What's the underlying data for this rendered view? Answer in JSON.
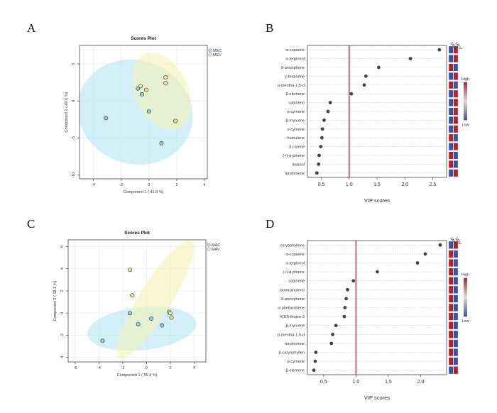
{
  "panels": {
    "a": "A",
    "b": "B",
    "c": "C",
    "d": "D"
  },
  "chart_data": [
    {
      "type": "scatter",
      "id": "A",
      "title": "Scores Plot",
      "xlabel": "Component 1 ( 41.8 %)",
      "ylabel": "Component 2 ( 40.6 %)",
      "xlim": [
        -5,
        4.2
      ],
      "ylim": [
        -10.5,
        7.5
      ],
      "xticks": [
        -4,
        -2,
        0,
        2,
        4
      ],
      "yticks": [
        -10,
        -5,
        0,
        5
      ],
      "grid": true,
      "legend_position": "top-right",
      "colors": {
        "s1": "#aee3f5",
        "s2": "#f5f2ae"
      },
      "series": [
        {
          "name": "MEC",
          "points": [
            [
              -3.1,
              -2.3
            ],
            [
              -0.8,
              1.7
            ],
            [
              -0.5,
              0.9
            ],
            [
              0.0,
              -1.4
            ],
            [
              0.9,
              -5.7
            ]
          ]
        },
        {
          "name": "MEV",
          "points": [
            [
              -0.6,
              2.0
            ],
            [
              -0.2,
              1.5
            ],
            [
              1.2,
              3.2
            ],
            [
              1.2,
              2.4
            ],
            [
              1.9,
              -2.7
            ]
          ]
        }
      ],
      "ellipses": [
        {
          "series": "MEC",
          "cx": -1.0,
          "cy": -1.5,
          "rx": 4.2,
          "ry": 7.0,
          "rot": 20
        },
        {
          "series": "MEV",
          "cx": 0.9,
          "cy": 1.3,
          "rx": 1.9,
          "ry": 5.5,
          "rot": -25
        }
      ]
    },
    {
      "type": "dot",
      "id": "B",
      "xlabel": "VIP scores",
      "xlim": [
        0.25,
        2.75
      ],
      "xticks": [
        0.5,
        1.0,
        1.5,
        2.0,
        2.5
      ],
      "threshold": 1.0,
      "heatmap_columns": [
        "MEC",
        "MEV"
      ],
      "heat_legend": {
        "high": "High",
        "low": "Low"
      },
      "features": [
        "α-copaene",
        "α-terpineol",
        "δ-amorphene",
        "γ-terpinene",
        "p-mentha-1,5-d",
        "β-elemene",
        "sabinene",
        "p-cymene",
        "β-myrcene",
        "o-cymene",
        "humulene",
        "3-carene",
        "(+)-α-pinene",
        "linalool",
        "terpinolene"
      ],
      "values": [
        2.62,
        2.1,
        1.53,
        1.3,
        1.27,
        1.04,
        0.66,
        0.62,
        0.55,
        0.52,
        0.51,
        0.49,
        0.46,
        0.45,
        0.42
      ],
      "heat": [
        [
          "L",
          "H"
        ],
        [
          "L",
          "H"
        ],
        [
          "H",
          "L"
        ],
        [
          "L",
          "H"
        ],
        [
          "H",
          "L"
        ],
        [
          "L",
          "H"
        ],
        [
          "L",
          "H"
        ],
        [
          "L",
          "H"
        ],
        [
          "L",
          "H"
        ],
        [
          "L",
          "H"
        ],
        [
          "H",
          "L"
        ],
        [
          "L",
          "H"
        ],
        [
          "H",
          "L"
        ],
        [
          "H",
          "L"
        ],
        [
          "L",
          "H"
        ]
      ]
    },
    {
      "type": "scatter",
      "id": "C",
      "title": "Scores Plot",
      "xlabel": "Component 1 ( 55.4 %)",
      "ylabel": "Component 2 ( 18.1 %)",
      "xlim": [
        -6.6,
        5.0
      ],
      "ylim": [
        -4.4,
        6.6
      ],
      "xticks": [
        -6,
        -4,
        -2,
        0,
        2,
        4
      ],
      "yticks": [
        -4,
        -2,
        0,
        2,
        4,
        6
      ],
      "grid": true,
      "legend_position": "top-right",
      "colors": {
        "s1": "#aee3f5",
        "s2": "#f5f2ae"
      },
      "series": [
        {
          "name": "MAC",
          "points": [
            [
              -3.7,
              -2.5
            ],
            [
              -1.4,
              0.0
            ],
            [
              -0.7,
              -1.0
            ],
            [
              0.4,
              -0.5
            ],
            [
              1.3,
              -1.1
            ]
          ]
        },
        {
          "name": "MAV",
          "points": [
            [
              -1.4,
              3.9
            ],
            [
              -1.2,
              1.6
            ],
            [
              1.9,
              0.1
            ],
            [
              2.0,
              0.0
            ],
            [
              2.1,
              -0.4
            ]
          ]
        }
      ],
      "ellipses": [
        {
          "series": "MAC",
          "cx": -0.4,
          "cy": -1.4,
          "rx": 4.6,
          "ry": 1.95,
          "rot": -6
        },
        {
          "series": "MAV",
          "cx": 0.7,
          "cy": 1.2,
          "rx": 5.8,
          "ry": 1.45,
          "rot": -58
        }
      ]
    },
    {
      "type": "dot",
      "id": "D",
      "xlabel": "VIP scores",
      "xlim": [
        0.25,
        2.4
      ],
      "xticks": [
        0.5,
        1.0,
        1.5,
        2.0
      ],
      "threshold": 1.0,
      "heatmap_columns": [
        "MAC",
        "MAV"
      ],
      "heat_legend": {
        "high": "High",
        "low": "Low"
      },
      "features": [
        "caryophyllene",
        "α-copaene",
        "α-terpineol",
        "(+)-α-pinene",
        "sabinene",
        "isoterpinolene",
        "δ-amorphene",
        "α-phellandrene",
        "4(10)-thujen-3",
        "β-myrcene",
        "p-mentha-1,5-d",
        "terpinolene",
        "β-caryophyllen",
        "p-cymene",
        "β-elemene"
      ],
      "values": [
        2.3,
        2.07,
        1.95,
        1.33,
        0.96,
        0.87,
        0.85,
        0.83,
        0.82,
        0.69,
        0.64,
        0.62,
        0.38,
        0.37,
        0.35
      ],
      "heat": [
        [
          "L",
          "H"
        ],
        [
          "H",
          "L"
        ],
        [
          "H",
          "L"
        ],
        [
          "H",
          "L"
        ],
        [
          "H",
          "L"
        ],
        [
          "H",
          "L"
        ],
        [
          "H",
          "L"
        ],
        [
          "H",
          "L"
        ],
        [
          "H",
          "L"
        ],
        [
          "H",
          "L"
        ],
        [
          "H",
          "L"
        ],
        [
          "H",
          "L"
        ],
        [
          "H",
          "L"
        ],
        [
          "H",
          "L"
        ],
        [
          "L",
          "H"
        ]
      ]
    }
  ]
}
